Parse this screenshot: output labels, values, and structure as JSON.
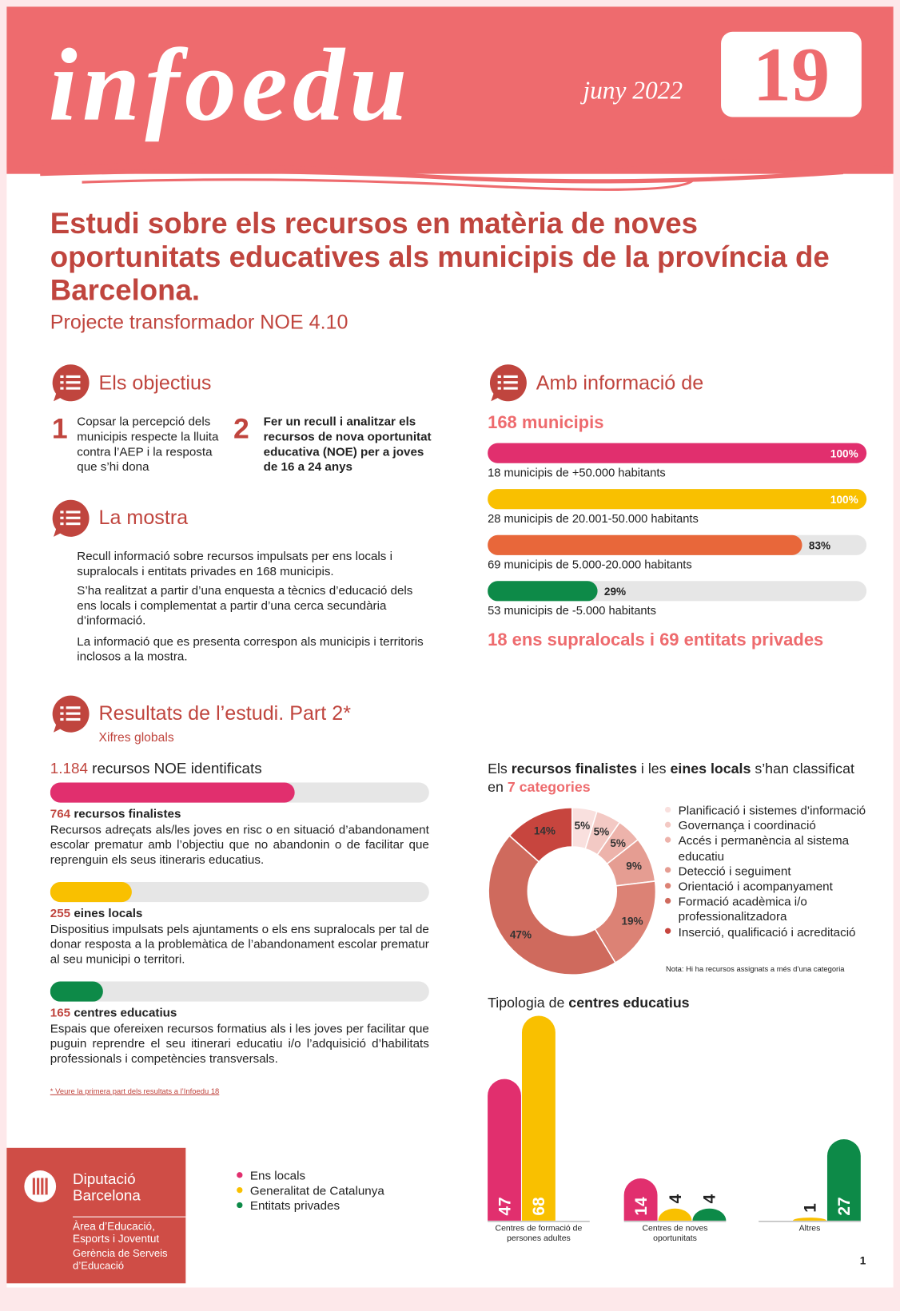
{
  "header": {
    "brand": "infoedu",
    "date": "juny 2022",
    "issue": "19"
  },
  "title": "Estudi sobre els recursos en matèria de noves oportunitats educatives als municipis de la província de Barcelona.",
  "subtitle": "Projecte transformador NOE 4.10",
  "objectives": {
    "heading": "Els objectius",
    "items": [
      {
        "number": "1",
        "text": "Copsar la percepció dels municipis respecte la lluita contra l’AEP i la resposta que s’hi dona"
      },
      {
        "number": "2",
        "text": "Fer un recull i analitzar els recursos de nova oportunitat educativa (NOE) per a joves de 16 a 24 anys"
      }
    ]
  },
  "sample": {
    "heading": "La mostra",
    "paragraphs": [
      "Recull informació sobre recursos impulsats per ens locals i supralocals i entitats privades en 168 municipis.",
      "S’ha realitzat a partir d’una enquesta a tècnics d’educació dels ens locals i complementat a partir d’una cerca secundària d’informació.",
      "La informació que es presenta correspon als municipis i territoris inclosos a la mostra."
    ]
  },
  "results": {
    "heading": "Resultats de l’estudi. Part 2*",
    "subheading": "Xifres globals",
    "footnote": "* Veure la primera part dels resultats a l’Infoedu 18"
  },
  "footer": {
    "org_line1": "Diputació",
    "org_line2": "Barcelona",
    "area": "Àrea d’Educació, Esports i Joventut",
    "unit": "Gerència de Serveis d’Educació",
    "page": "1"
  },
  "chart_data": [
    {
      "type": "bar",
      "orientation": "horizontal",
      "heading": "Amb informació de",
      "total": "168 municipis",
      "categories": [
        "18 municipis de +50.000 habitants",
        "28 municipis de 20.001-50.000 habitants",
        "69 municipis de 5.000-20.000 habitants",
        "53 municipis de -5.000 habitants"
      ],
      "values": [
        100,
        100,
        83,
        29
      ],
      "value_labels": [
        "100%",
        "100%",
        "83%",
        "29%"
      ],
      "colors": [
        "#e12f6e",
        "#f9c000",
        "#e8673a",
        "#0d8a48"
      ],
      "xlim": [
        0,
        100
      ],
      "footer": "18 ens supralocals i 69 entitats privades"
    },
    {
      "type": "bar",
      "orientation": "horizontal",
      "total": {
        "value": 1184,
        "label": "1.184"
      },
      "total_text": "recursos NOE identificats",
      "categories": [
        "recursos finalistes",
        "eines locals",
        "centres educatius"
      ],
      "values": [
        764,
        255,
        165
      ],
      "descriptions": [
        "Recursos adreçats als/les joves en risc o en situació d’abandonament escolar prematur amb l’objectiu que no abandonin o de facilitar que reprenguin els seus itineraris educatius.",
        "Dispositius impulsats pels ajuntaments o els ens supralocals per tal de donar resposta a la problemàtica de l’abandonament escolar prematur al seu municipi o territori.",
        "Espais que ofereixen recursos formatius als i les joves  per facilitar que puguin reprendre el seu itinerari educatiu i/o l’adquisició d’habilitats professionals i competències transversals."
      ],
      "colors": [
        "#e12f6e",
        "#f9c000",
        "#0d8a48"
      ]
    },
    {
      "type": "donut",
      "title_parts": [
        "Els ",
        "recursos finalistes",
        " i les ",
        "eines locals",
        " s’han classificat en ",
        "7 categories"
      ],
      "categories": [
        "Planificació i sistemes d’informació",
        "Governança i coordinació",
        "Accés i permanència al sistema educatiu",
        "Detecció i seguiment",
        "Orientació i acompanyament",
        "Formació acadèmica i/o professionalitzadora",
        "Inserció, qualificació i acreditació"
      ],
      "values": [
        5,
        5,
        5,
        9,
        19,
        47,
        14
      ],
      "value_labels": [
        "5%",
        "5%",
        "5%",
        "9%",
        "19%",
        "47%",
        "14%"
      ],
      "colors": [
        "#f9e0de",
        "#f3c9c4",
        "#edb3ab",
        "#e59d92",
        "#dc8275",
        "#cf6a5d",
        "#c7453e"
      ],
      "note": "Nota: Hi ha recursos assignats a més d’una categoria"
    },
    {
      "type": "column",
      "title_parts": [
        "Tipologia de ",
        "centres educatius"
      ],
      "categories": [
        "Centres de formació de persones adultes",
        "Centres de noves oportunitats",
        "Altres"
      ],
      "series": [
        {
          "name": "Ens locals",
          "color": "#e12f6e",
          "values": [
            47,
            14,
            null
          ]
        },
        {
          "name": "Generalitat de Catalunya",
          "color": "#f9c000",
          "values": [
            68,
            4,
            1
          ]
        },
        {
          "name": "Entitats privades",
          "color": "#0d8a48",
          "values": [
            null,
            4,
            27
          ]
        }
      ],
      "ylim": [
        0,
        68
      ]
    }
  ]
}
